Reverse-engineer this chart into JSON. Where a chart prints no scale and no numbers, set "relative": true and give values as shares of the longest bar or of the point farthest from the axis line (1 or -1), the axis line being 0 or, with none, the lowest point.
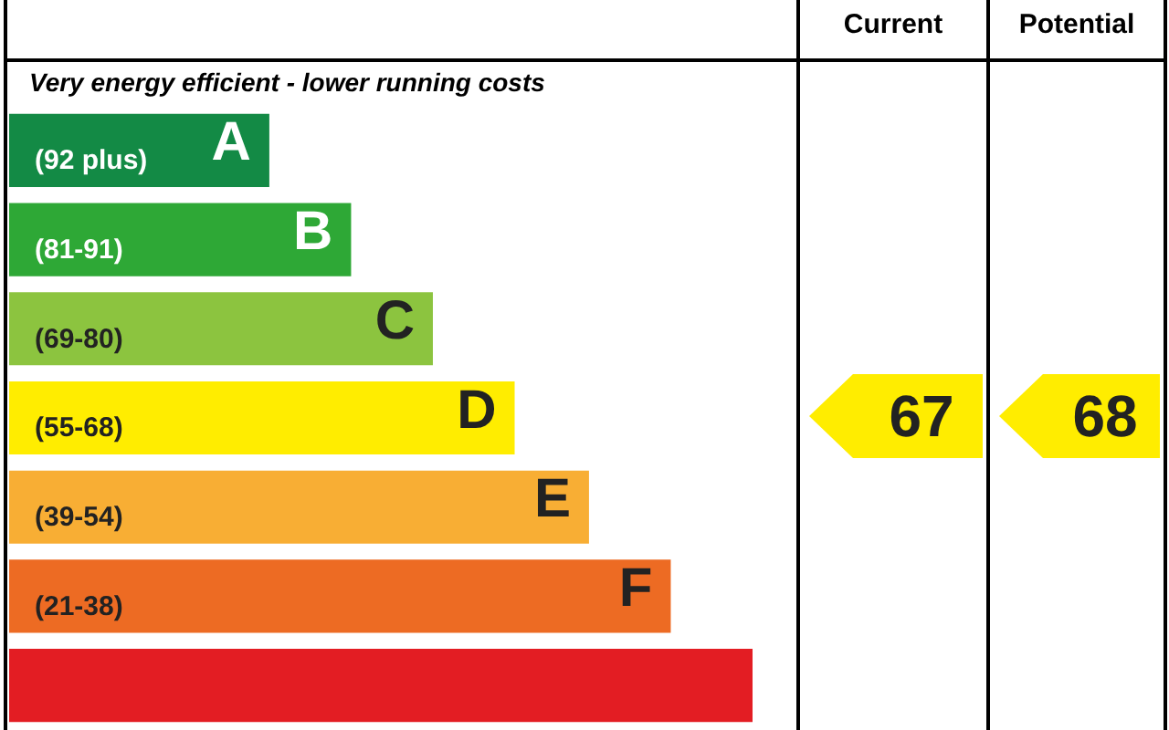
{
  "chart_data": {
    "type": "bar",
    "orientation": "horizontal",
    "relative": true,
    "title": "Very energy efficient - lower running costs",
    "categories": [
      "(92 plus)",
      "(81-91)",
      "(69-80)",
      "(55-68)",
      "(39-54)",
      "(21-38)",
      null
    ],
    "values": [
      0.35,
      0.46,
      0.57,
      0.68,
      0.78,
      0.89,
      1.0
    ],
    "colors": [
      "#138a45",
      "#2ea836",
      "#8cc43f",
      "#ffed00",
      "#f8ae34",
      "#ed6b23",
      "#e31d23"
    ],
    "annotations": [
      "Current",
      "Potential",
      {
        "text": "A",
        "x": 0.35,
        "y": "(92 plus)"
      },
      {
        "text": "B",
        "x": 0.46,
        "y": "(81-91)"
      },
      {
        "text": "C",
        "x": 0.57,
        "y": "(69-80)"
      },
      {
        "text": "D",
        "x": 0.68,
        "y": "(55-68)"
      },
      {
        "text": "E",
        "x": 0.78,
        "y": "(39-54)"
      },
      {
        "text": "F",
        "x": 0.89,
        "y": "(21-38)"
      },
      "67",
      "68"
    ],
    "legend": false
  }
}
